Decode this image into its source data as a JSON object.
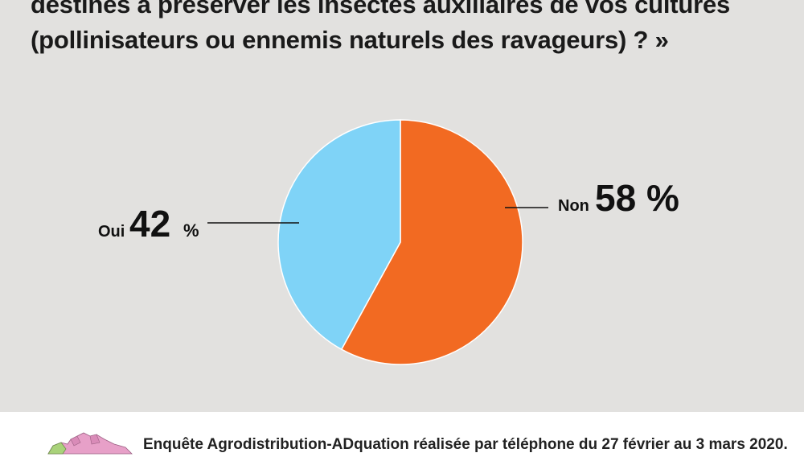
{
  "title": {
    "line1": "destinés à préserver les insectes auxiliaires de vos cultures",
    "line2": "(pollinisateurs ou ennemis naturels des ravageurs) ? »"
  },
  "chart_data": {
    "type": "pie",
    "slices": [
      {
        "label": "Non",
        "value": 58,
        "unit": "%",
        "color": "#f26a22"
      },
      {
        "label": "Oui",
        "value": 42,
        "unit": "%",
        "color": "#7fd3f7"
      }
    ]
  },
  "labels": {
    "non_name": "Non",
    "non_value": "58 %",
    "oui_name": "Oui",
    "oui_number": "42",
    "oui_percent": "%"
  },
  "footer": {
    "note": "Enquête Agrodistribution-ADquation réalisée par téléphone du 27 février au 3 mars 2020."
  },
  "colors": {
    "background": "#e2e1df",
    "non": "#f26a22",
    "oui": "#7fd3f7"
  }
}
